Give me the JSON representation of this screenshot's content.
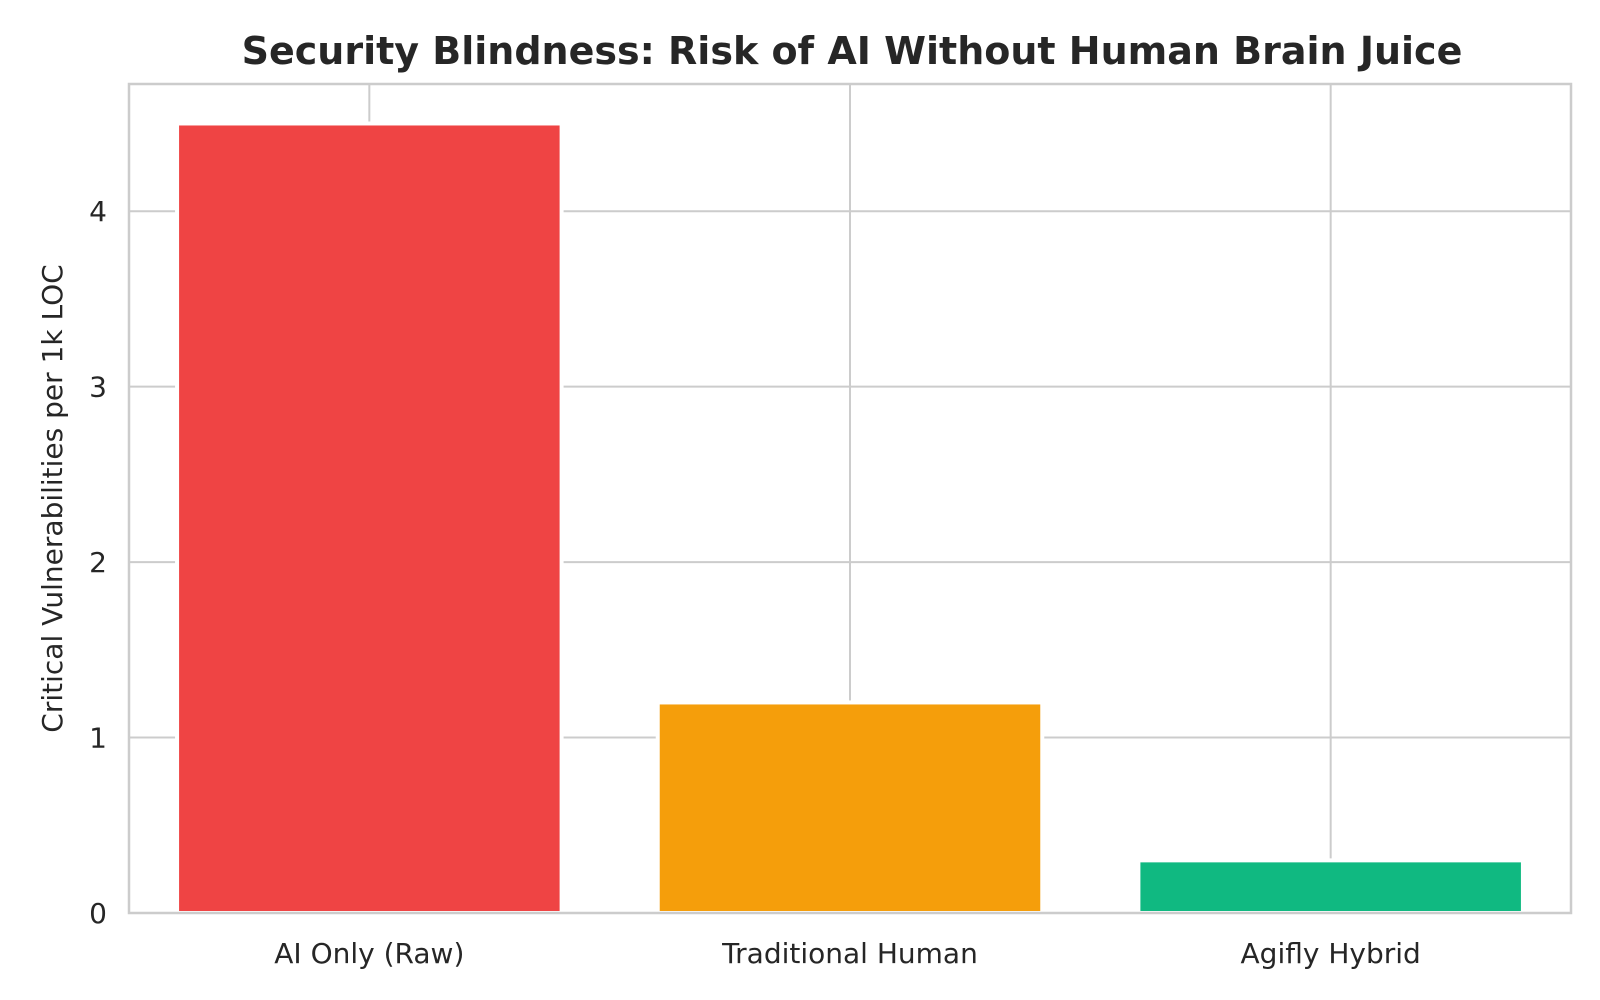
{
  "chart_data": {
    "type": "bar",
    "title": "Security Blindness: Risk of AI Without Human Brain Juice",
    "xlabel": "",
    "ylabel": "Critical Vulnerabilities per 1k LOC",
    "categories": [
      "AI Only (Raw)",
      "Traditional Human",
      "Agifly Hybrid"
    ],
    "values": [
      4.5,
      1.2,
      0.3
    ],
    "colors": [
      "#ef4444",
      "#f59e0b",
      "#10b981"
    ],
    "ylim": [
      0,
      4.725
    ],
    "yticks": [
      0,
      1,
      2,
      3,
      4
    ],
    "ytick_labels": [
      "0",
      "1",
      "2",
      "3",
      "4"
    ],
    "grid": true,
    "legend": "none"
  }
}
